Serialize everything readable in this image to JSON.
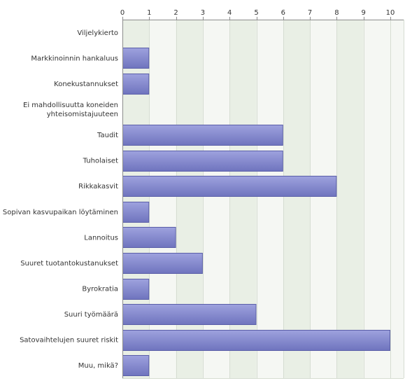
{
  "chart_data": {
    "type": "bar",
    "orientation": "horizontal",
    "title": "",
    "xlabel": "",
    "ylabel": "",
    "xlim": [
      0,
      10.5
    ],
    "x_ticks": [
      0,
      1,
      2,
      3,
      4,
      5,
      6,
      7,
      8,
      9,
      10
    ],
    "x_axis_position": "top",
    "grid": true,
    "legend": "none",
    "categories": [
      "Viljelykierto",
      "Markkinoinnin hankaluus",
      "Konekustannukset",
      "Ei mahdollisuutta koneiden yhteisomistajuuteen",
      "Taudit",
      "Tuholaiset",
      "Rikkakasvit",
      "Sopivan kasvupaikan löytäminen",
      "Lannoitus",
      "Suuret tuotantokustanukset",
      "Byrokratia",
      "Suuri työmäärä",
      "Satovaihtelujen suuret riskit",
      "Muu, mikä?"
    ],
    "category_lines": [
      [
        "Viljelykierto"
      ],
      [
        "Markkinoinnin hankaluus"
      ],
      [
        "Konekustannukset"
      ],
      [
        "Ei mahdollisuutta koneiden",
        "yhteisomistajuuteen"
      ],
      [
        "Taudit"
      ],
      [
        "Tuholaiset"
      ],
      [
        "Rikkakasvit"
      ],
      [
        "Sopivan kasvupaikan löytäminen"
      ],
      [
        "Lannoitus"
      ],
      [
        "Suuret tuotantokustanukset"
      ],
      [
        "Byrokratia"
      ],
      [
        "Suuri työmäärä"
      ],
      [
        "Satovaihtelujen suuret riskit"
      ],
      [
        "Muu, mikä?"
      ]
    ],
    "values": [
      0,
      1,
      1,
      0,
      6,
      6,
      8,
      1,
      2,
      3,
      1,
      5,
      10,
      1
    ]
  },
  "colors": {
    "bar_fill_top": "#9ea2de",
    "bar_fill_bottom": "#6f74be",
    "bar_stroke": "#5b5fa8",
    "band_light": "#f5f7f3",
    "band_dark": "#e9efe5",
    "grid": "#d6ddd2",
    "axis": "#8c8c8c",
    "text": "#333333"
  }
}
